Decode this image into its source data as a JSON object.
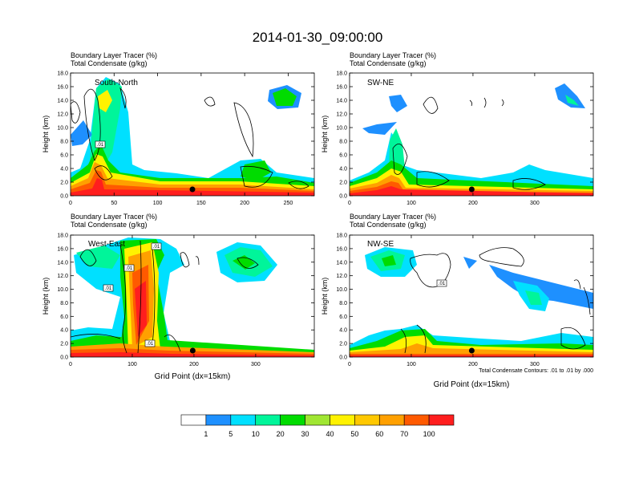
{
  "title": "2014-01-30_09:00:00",
  "legend_bar": {
    "colors": [
      "#ffffff",
      "#1e90ff",
      "#00e0ff",
      "#00f59a",
      "#00dc00",
      "#a0e632",
      "#fff200",
      "#ffc800",
      "#ffa000",
      "#ff5a00",
      "#ff1e1e"
    ],
    "labels": [
      "1",
      "5",
      "10",
      "20",
      "30",
      "40",
      "50",
      "60",
      "70",
      "100"
    ]
  },
  "contour_note": "Total Condensate Contours: .01 to .01 by .000",
  "contour_label": ".01",
  "chart_data": [
    {
      "type": "heatmap",
      "panel_label": "South-North",
      "header": [
        "Boundary Layer Tracer    (%)",
        "Total Condensate    (g/kg)"
      ],
      "ylabel": "Height (km)",
      "xlabel": "",
      "xlim": [
        0,
        280
      ],
      "ylim": [
        0,
        18
      ],
      "xticks": [
        "0",
        "50",
        "100",
        "150",
        "200",
        "250"
      ],
      "yticks": [
        "0.0",
        "2.0",
        "4.0",
        "6.0",
        "8.0",
        "10.0",
        "12.0",
        "14.0",
        "16.0",
        "18.0"
      ],
      "marker_x": 140
    },
    {
      "type": "heatmap",
      "panel_label": "SW-NE",
      "header": [
        "Boundary Layer Tracer    (%)",
        "Total Condensate    (g/kg)"
      ],
      "ylabel": "Height (km)",
      "xlabel": "",
      "xlim": [
        0,
        395
      ],
      "ylim": [
        0,
        18
      ],
      "xticks": [
        "0",
        "100",
        "200",
        "300"
      ],
      "yticks": [
        "0.0",
        "2.0",
        "4.0",
        "6.0",
        "8.0",
        "10.0",
        "12.0",
        "14.0",
        "16.0",
        "18.0"
      ],
      "marker_x": 198
    },
    {
      "type": "heatmap",
      "panel_label": "West-East",
      "header": [
        "Boundary Layer Tracer    (%)",
        "Total Condensate    (g/kg)"
      ],
      "ylabel": "Height (km)",
      "xlabel": "Grid Point (dx=15km)",
      "xlim": [
        0,
        395
      ],
      "ylim": [
        0,
        18
      ],
      "xticks": [
        "0",
        "100",
        "200",
        "300"
      ],
      "yticks": [
        "0.0",
        "2.0",
        "4.0",
        "6.0",
        "8.0",
        "10.0",
        "12.0",
        "14.0",
        "16.0",
        "18.0"
      ],
      "marker_x": 198
    },
    {
      "type": "heatmap",
      "panel_label": "NW-SE",
      "header": [
        "Boundary Layer Tracer    (%)",
        "Total Condensate    (g/kg)"
      ],
      "ylabel": "Height (km)",
      "xlabel": "Grid Point (dx=15km)",
      "xlim": [
        0,
        395
      ],
      "ylim": [
        0,
        18
      ],
      "xticks": [
        "0",
        "100",
        "200",
        "300"
      ],
      "yticks": [
        "0.0",
        "2.0",
        "4.0",
        "6.0",
        "8.0",
        "10.0",
        "12.0",
        "14.0",
        "16.0",
        "18.0"
      ],
      "marker_x": 198
    }
  ]
}
